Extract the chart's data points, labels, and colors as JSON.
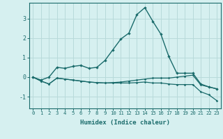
{
  "title": "",
  "xlabel": "Humidex (Indice chaleur)",
  "ylabel": "",
  "background_color": "#d6f0f0",
  "grid_color": "#b8dada",
  "line_color": "#1a6b6b",
  "xlim": [
    -0.5,
    23.5
  ],
  "ylim": [
    -1.6,
    3.8
  ],
  "xticks": [
    0,
    1,
    2,
    3,
    4,
    5,
    6,
    7,
    8,
    9,
    10,
    11,
    12,
    13,
    14,
    15,
    16,
    17,
    18,
    19,
    20,
    21,
    22,
    23
  ],
  "yticks": [
    -1,
    0,
    1,
    2,
    3
  ],
  "series1_x": [
    0,
    1,
    2,
    3,
    4,
    5,
    6,
    7,
    8,
    9,
    10,
    11,
    12,
    13,
    14,
    15,
    16,
    17,
    18,
    19,
    20,
    21,
    22,
    23
  ],
  "series1_y": [
    0.0,
    -0.15,
    0.0,
    0.5,
    0.45,
    0.55,
    0.6,
    0.45,
    0.5,
    0.85,
    1.4,
    1.95,
    2.25,
    3.2,
    3.55,
    2.85,
    2.2,
    1.05,
    0.2,
    0.2,
    0.2,
    -0.35,
    -0.5,
    -0.6
  ],
  "series2_x": [
    0,
    1,
    2,
    3,
    4,
    5,
    6,
    7,
    8,
    9,
    10,
    11,
    12,
    13,
    14,
    15,
    16,
    17,
    18,
    19,
    20,
    21,
    22,
    23
  ],
  "series2_y": [
    0.0,
    -0.2,
    -0.35,
    -0.05,
    -0.1,
    -0.15,
    -0.2,
    -0.25,
    -0.28,
    -0.3,
    -0.3,
    -0.3,
    -0.3,
    -0.28,
    -0.25,
    -0.3,
    -0.3,
    -0.35,
    -0.38,
    -0.38,
    -0.38,
    -0.75,
    -0.9,
    -1.2
  ],
  "series3_x": [
    0,
    1,
    2,
    3,
    4,
    5,
    6,
    7,
    8,
    9,
    10,
    11,
    12,
    13,
    14,
    15,
    16,
    17,
    18,
    19,
    20,
    21,
    22,
    23
  ],
  "series3_y": [
    0.0,
    -0.2,
    -0.35,
    -0.05,
    -0.1,
    -0.15,
    -0.2,
    -0.25,
    -0.28,
    -0.3,
    -0.28,
    -0.25,
    -0.2,
    -0.15,
    -0.1,
    -0.05,
    -0.05,
    -0.05,
    0.0,
    0.05,
    0.1,
    -0.4,
    -0.5,
    -0.6
  ],
  "xtick_fontsize": 5.2,
  "ytick_fontsize": 6.0,
  "xlabel_fontsize": 6.5
}
